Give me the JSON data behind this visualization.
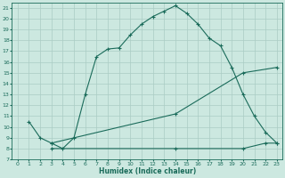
{
  "xlabel": "Humidex (Indice chaleur)",
  "background_color": "#cce8e0",
  "grid_color": "#aaccc4",
  "line_color": "#1a6b5a",
  "xlim": [
    -0.5,
    23.5
  ],
  "ylim": [
    7,
    21.5
  ],
  "xticks": [
    0,
    1,
    2,
    3,
    4,
    5,
    6,
    7,
    8,
    9,
    10,
    11,
    12,
    13,
    14,
    15,
    16,
    17,
    18,
    19,
    20,
    21,
    22,
    23
  ],
  "yticks": [
    7,
    8,
    9,
    10,
    11,
    12,
    13,
    14,
    15,
    16,
    17,
    18,
    19,
    20,
    21
  ],
  "line1_x": [
    1,
    2,
    3,
    4,
    5,
    6,
    7,
    8,
    9,
    10,
    11,
    12,
    13,
    14,
    15,
    16,
    17,
    18,
    19,
    20,
    21,
    22,
    23
  ],
  "line1_y": [
    10.5,
    9.0,
    8.5,
    8.0,
    9.0,
    13.0,
    16.5,
    17.2,
    17.3,
    18.5,
    19.5,
    20.2,
    20.7,
    21.2,
    20.5,
    19.5,
    18.2,
    17.5,
    15.5,
    13.0,
    11.0,
    9.5,
    8.5
  ],
  "line2_x": [
    3,
    14,
    20,
    23
  ],
  "line2_y": [
    8.5,
    11.2,
    15.0,
    15.5
  ],
  "line3_x": [
    3,
    14,
    20,
    22,
    23
  ],
  "line3_y": [
    8.0,
    8.0,
    8.0,
    8.5,
    8.5
  ]
}
